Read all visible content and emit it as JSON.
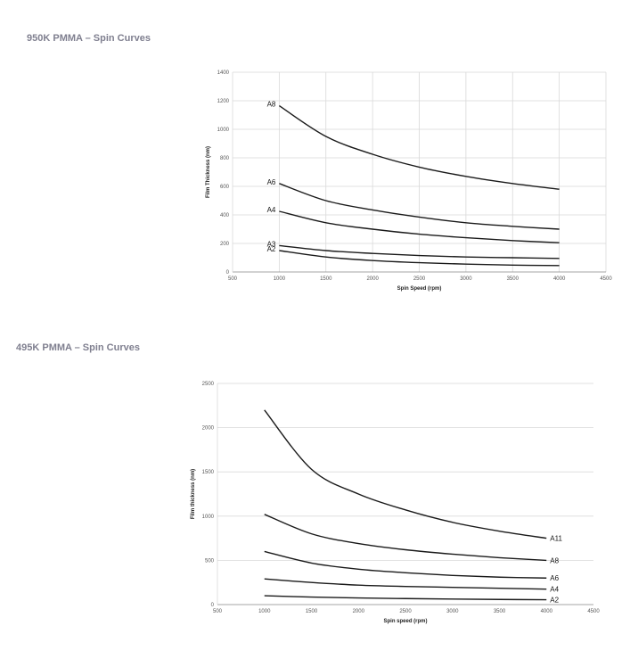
{
  "charts": [
    {
      "heading": "950K PMMA – Spin Curves",
      "chart_data": {
        "type": "line",
        "title": "",
        "xlabel": "Spin Speed (rpm)",
        "ylabel": "Film Thickness (nm)",
        "xlim": [
          500,
          4500
        ],
        "ylim": [
          0,
          1400
        ],
        "xticks": [
          500,
          1000,
          1500,
          2000,
          2500,
          3000,
          3500,
          4000,
          4500
        ],
        "yticks": [
          0,
          200,
          400,
          600,
          800,
          1000,
          1200,
          1400
        ],
        "grid": {
          "vertical": true,
          "horizontal": true
        },
        "x": [
          1000,
          1500,
          2000,
          2500,
          3000,
          3500,
          4000
        ],
        "series": [
          {
            "name": "A8",
            "label_side": "left",
            "values": [
              1165,
              950,
              825,
              735,
              670,
              620,
              580
            ]
          },
          {
            "name": "A6",
            "label_side": "left",
            "values": [
              620,
              500,
              435,
              385,
              345,
              320,
              300
            ]
          },
          {
            "name": "A4",
            "label_side": "left",
            "values": [
              425,
              345,
              300,
              265,
              240,
              220,
              205
            ]
          },
          {
            "name": "A3",
            "label_side": "left",
            "values": [
              185,
              150,
              130,
              115,
              105,
              100,
              95
            ]
          },
          {
            "name": "A2",
            "label_side": "left",
            "values": [
              150,
              105,
              80,
              65,
              55,
              48,
              45
            ]
          }
        ]
      }
    },
    {
      "heading": "495K PMMA – Spin Curves",
      "chart_data": {
        "type": "line",
        "title": "",
        "xlabel": "Spin speed (rpm)",
        "ylabel": "Film thickness (nm)",
        "xlim": [
          500,
          4500
        ],
        "ylim": [
          0,
          2500
        ],
        "xticks": [
          500,
          1000,
          1500,
          2000,
          2500,
          3000,
          3500,
          4000,
          4500
        ],
        "yticks": [
          0,
          500,
          1000,
          1500,
          2000,
          2500
        ],
        "grid": {
          "vertical": false,
          "horizontal": true
        },
        "x": [
          1000,
          1500,
          2000,
          2500,
          3000,
          3500,
          4000
        ],
        "series": [
          {
            "name": "A11",
            "label_side": "right",
            "values": [
              2200,
              1530,
              1250,
              1070,
              930,
              830,
              750
            ]
          },
          {
            "name": "A8",
            "label_side": "right",
            "values": [
              1020,
              800,
              690,
              620,
              570,
              530,
              500
            ]
          },
          {
            "name": "A6",
            "label_side": "right",
            "values": [
              600,
              470,
              400,
              360,
              330,
              310,
              300
            ]
          },
          {
            "name": "A4",
            "label_side": "right",
            "values": [
              290,
              250,
              220,
              205,
              195,
              185,
              175
            ]
          },
          {
            "name": "A2",
            "label_side": "right",
            "values": [
              100,
              85,
              75,
              68,
              62,
              58,
              55
            ]
          }
        ]
      }
    }
  ]
}
